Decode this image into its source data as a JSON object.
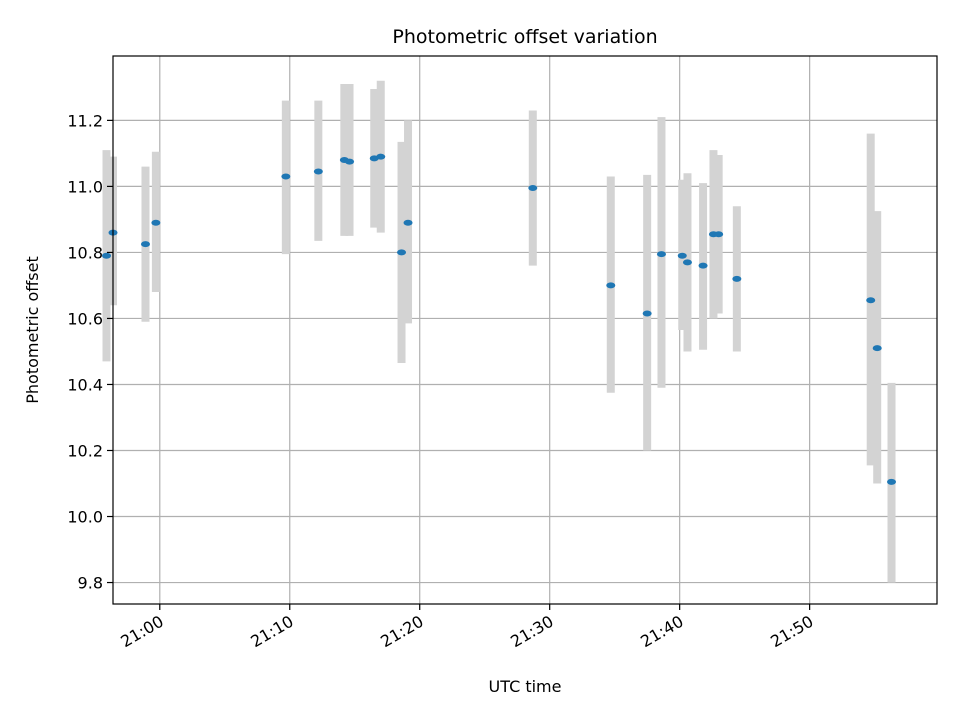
{
  "chart_data": {
    "type": "scatter",
    "title": "Photometric offset variation",
    "xlabel": "UTC time",
    "ylabel": "Photometric offset",
    "x_ticks": [
      "21:00",
      "21:10",
      "21:20",
      "21:30",
      "21:40",
      "21:50"
    ],
    "y_ticks": [
      "9.8",
      "10.0",
      "10.2",
      "10.4",
      "10.6",
      "10.8",
      "11.0",
      "11.2"
    ],
    "xlim": [
      "20:56:24",
      "21:59:48"
    ],
    "ylim": [
      9.735,
      11.395
    ],
    "grid": true,
    "colors": {
      "points": "#1f77b4",
      "errorbars": "#d3d3d3",
      "grid": "#b0b0b0"
    },
    "points": [
      {
        "x": "20:55:54",
        "y": 10.79,
        "low": 10.47,
        "high": 11.11
      },
      {
        "x": "20:56:24",
        "y": 10.86,
        "low": 10.64,
        "high": 11.09
      },
      {
        "x": "20:58:54",
        "y": 10.825,
        "low": 10.59,
        "high": 11.06
      },
      {
        "x": "20:59:42",
        "y": 10.89,
        "low": 10.68,
        "high": 11.105
      },
      {
        "x": "21:09:42",
        "y": 11.03,
        "low": 10.795,
        "high": 11.26
      },
      {
        "x": "21:12:12",
        "y": 11.045,
        "low": 10.835,
        "high": 11.26
      },
      {
        "x": "21:14:12",
        "y": 11.08,
        "low": 10.85,
        "high": 11.31
      },
      {
        "x": "21:14:36",
        "y": 11.075,
        "low": 10.85,
        "high": 11.31
      },
      {
        "x": "21:16:30",
        "y": 11.085,
        "low": 10.875,
        "high": 11.295
      },
      {
        "x": "21:17:00",
        "y": 11.09,
        "low": 10.86,
        "high": 11.32
      },
      {
        "x": "21:18:36",
        "y": 10.8,
        "low": 10.465,
        "high": 11.135
      },
      {
        "x": "21:19:06",
        "y": 10.89,
        "low": 10.585,
        "high": 11.2
      },
      {
        "x": "21:28:42",
        "y": 10.995,
        "low": 10.76,
        "high": 11.23
      },
      {
        "x": "21:34:42",
        "y": 10.7,
        "low": 10.375,
        "high": 11.03
      },
      {
        "x": "21:37:30",
        "y": 10.615,
        "low": 10.2,
        "high": 11.035
      },
      {
        "x": "21:38:36",
        "y": 10.795,
        "low": 10.39,
        "high": 11.21
      },
      {
        "x": "21:40:12",
        "y": 10.79,
        "low": 10.565,
        "high": 11.02
      },
      {
        "x": "21:40:36",
        "y": 10.77,
        "low": 10.5,
        "high": 11.04
      },
      {
        "x": "21:41:48",
        "y": 10.76,
        "low": 10.505,
        "high": 11.01
      },
      {
        "x": "21:42:36",
        "y": 10.855,
        "low": 10.6,
        "high": 11.11
      },
      {
        "x": "21:43:00",
        "y": 10.855,
        "low": 10.615,
        "high": 11.095
      },
      {
        "x": "21:44:24",
        "y": 10.72,
        "low": 10.5,
        "high": 10.94
      },
      {
        "x": "21:54:42",
        "y": 10.655,
        "low": 10.155,
        "high": 11.16
      },
      {
        "x": "21:55:12",
        "y": 10.51,
        "low": 10.1,
        "high": 10.925
      },
      {
        "x": "21:56:18",
        "y": 10.105,
        "low": 9.8,
        "high": 10.405
      }
    ]
  }
}
